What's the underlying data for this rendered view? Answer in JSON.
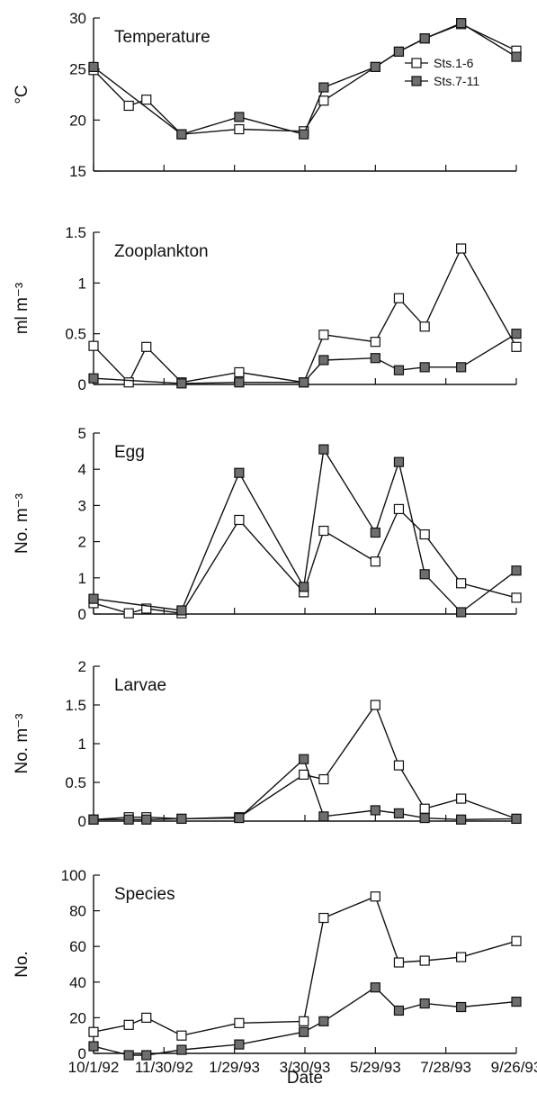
{
  "chart_data": [
    {
      "type": "line",
      "title": "Temperature",
      "ylabel": "°C",
      "xlabel": "",
      "ylim": [
        15,
        30
      ],
      "yticks": [
        15,
        20,
        25,
        30
      ],
      "legend": {
        "placement": "top-right",
        "entries": [
          "Sts.1-6",
          "Sts.7-11"
        ]
      },
      "series": [
        {
          "name": "Sts.1-6",
          "marker": "open-square",
          "points": [
            [
              "1992-10-01",
              24.9
            ],
            [
              "1992-10-31",
              21.4
            ],
            [
              "1992-11-15",
              22.0
            ],
            [
              "1992-12-15",
              18.6
            ],
            [
              "1993-02-02",
              19.1
            ],
            [
              "1993-03-29",
              18.9
            ],
            [
              "1993-04-15",
              21.9
            ],
            [
              "1993-05-29",
              25.2
            ],
            [
              "1993-06-18",
              26.7
            ],
            [
              "1993-07-10",
              28.0
            ],
            [
              "1993-08-10",
              29.4
            ],
            [
              "1993-09-26",
              26.8
            ]
          ]
        },
        {
          "name": "Sts.7-11",
          "marker": "filled-square",
          "points": [
            [
              "1992-10-01",
              25.2
            ],
            [
              "1992-12-15",
              18.6
            ],
            [
              "1993-02-02",
              20.3
            ],
            [
              "1993-03-29",
              18.6
            ],
            [
              "1993-04-15",
              23.2
            ],
            [
              "1993-05-29",
              25.2
            ],
            [
              "1993-06-18",
              26.7
            ],
            [
              "1993-07-10",
              28.0
            ],
            [
              "1993-08-10",
              29.5
            ],
            [
              "1993-09-26",
              26.2
            ]
          ]
        }
      ]
    },
    {
      "type": "line",
      "title": "Zooplankton",
      "ylabel": "ml m⁻³",
      "xlabel": "",
      "ylim": [
        0,
        1.5
      ],
      "yticks": [
        0,
        0.5,
        1,
        1.5
      ],
      "series": [
        {
          "name": "Sts.1-6",
          "marker": "open-square",
          "points": [
            [
              "1992-10-01",
              0.38
            ],
            [
              "1992-10-31",
              0.02
            ],
            [
              "1992-11-15",
              0.37
            ],
            [
              "1992-12-15",
              0.02
            ],
            [
              "1993-02-02",
              0.12
            ],
            [
              "1993-03-29",
              0.02
            ],
            [
              "1993-04-15",
              0.49
            ],
            [
              "1993-05-29",
              0.42
            ],
            [
              "1993-06-18",
              0.85
            ],
            [
              "1993-07-10",
              0.57
            ],
            [
              "1993-08-10",
              1.34
            ],
            [
              "1993-09-26",
              0.37
            ]
          ]
        },
        {
          "name": "Sts.7-11",
          "marker": "filled-square",
          "points": [
            [
              "1992-10-01",
              0.06
            ],
            [
              "1992-12-15",
              0.01
            ],
            [
              "1993-02-02",
              0.02
            ],
            [
              "1993-03-29",
              0.02
            ],
            [
              "1993-04-15",
              0.24
            ],
            [
              "1993-05-29",
              0.26
            ],
            [
              "1993-06-18",
              0.14
            ],
            [
              "1993-07-10",
              0.17
            ],
            [
              "1993-08-10",
              0.17
            ],
            [
              "1993-09-26",
              0.5
            ]
          ]
        }
      ]
    },
    {
      "type": "line",
      "title": "Egg",
      "ylabel": "No. m⁻³",
      "xlabel": "",
      "ylim": [
        0,
        5
      ],
      "yticks": [
        0,
        1,
        2,
        3,
        4,
        5
      ],
      "series": [
        {
          "name": "Sts.1-6",
          "marker": "open-square",
          "points": [
            [
              "1992-10-01",
              0.3
            ],
            [
              "1992-10-31",
              0.02
            ],
            [
              "1992-11-15",
              0.15
            ],
            [
              "1992-12-15",
              0.02
            ],
            [
              "1993-02-02",
              2.6
            ],
            [
              "1993-03-29",
              0.6
            ],
            [
              "1993-04-15",
              2.3
            ],
            [
              "1993-05-29",
              1.45
            ],
            [
              "1993-06-18",
              2.9
            ],
            [
              "1993-07-10",
              2.2
            ],
            [
              "1993-08-10",
              0.85
            ],
            [
              "1993-09-26",
              0.45
            ]
          ]
        },
        {
          "name": "Sts.7-11",
          "marker": "filled-square",
          "points": [
            [
              "1992-10-01",
              0.42
            ],
            [
              "1992-12-15",
              0.1
            ],
            [
              "1993-02-02",
              3.9
            ],
            [
              "1993-03-29",
              0.75
            ],
            [
              "1993-04-15",
              4.55
            ],
            [
              "1993-05-29",
              2.25
            ],
            [
              "1993-06-18",
              4.2
            ],
            [
              "1993-07-10",
              1.1
            ],
            [
              "1993-08-10",
              0.05
            ],
            [
              "1993-09-26",
              1.2
            ]
          ]
        }
      ]
    },
    {
      "type": "line",
      "title": "Larvae",
      "ylabel": "No. m⁻³",
      "xlabel": "",
      "ylim": [
        0,
        2
      ],
      "yticks": [
        0,
        0.5,
        1,
        1.5,
        2
      ],
      "series": [
        {
          "name": "Sts.1-6",
          "marker": "open-square",
          "points": [
            [
              "1992-10-01",
              0.02
            ],
            [
              "1992-10-31",
              0.05
            ],
            [
              "1992-11-15",
              0.05
            ],
            [
              "1992-12-15",
              0.03
            ],
            [
              "1993-02-02",
              0.05
            ],
            [
              "1993-03-29",
              0.6
            ],
            [
              "1993-04-15",
              0.54
            ],
            [
              "1993-05-29",
              1.5
            ],
            [
              "1993-06-18",
              0.72
            ],
            [
              "1993-07-10",
              0.16
            ],
            [
              "1993-08-10",
              0.29
            ],
            [
              "1993-09-26",
              0.03
            ]
          ]
        },
        {
          "name": "Sts.7-11",
          "marker": "filled-square",
          "points": [
            [
              "1992-10-01",
              0.02
            ],
            [
              "1992-10-31",
              0.02
            ],
            [
              "1992-11-15",
              0.02
            ],
            [
              "1992-12-15",
              0.03
            ],
            [
              "1993-02-02",
              0.04
            ],
            [
              "1993-03-29",
              0.8
            ],
            [
              "1993-04-15",
              0.06
            ],
            [
              "1993-05-29",
              0.14
            ],
            [
              "1993-06-18",
              0.1
            ],
            [
              "1993-07-10",
              0.04
            ],
            [
              "1993-08-10",
              0.02
            ],
            [
              "1993-09-26",
              0.03
            ]
          ]
        }
      ]
    },
    {
      "type": "line",
      "title": "Species",
      "ylabel": "No.",
      "xlabel": "Date",
      "ylim": [
        0,
        100
      ],
      "yticks": [
        0,
        20,
        40,
        60,
        80,
        100
      ],
      "xticks": [
        {
          "date": "1992-10-01",
          "label": "10/1/92"
        },
        {
          "date": "1992-11-30",
          "label": "11/30/92"
        },
        {
          "date": "1993-01-29",
          "label": "1/29/93"
        },
        {
          "date": "1993-03-30",
          "label": "3/30/93"
        },
        {
          "date": "1993-05-29",
          "label": "5/29/93"
        },
        {
          "date": "1993-07-28",
          "label": "7/28/93"
        },
        {
          "date": "1993-09-26",
          "label": "9/26/93"
        }
      ],
      "series": [
        {
          "name": "Sts.1-6",
          "marker": "open-square",
          "points": [
            [
              "1992-10-01",
              12
            ],
            [
              "1992-10-31",
              16
            ],
            [
              "1992-11-15",
              20
            ],
            [
              "1992-12-15",
              10
            ],
            [
              "1993-02-02",
              17
            ],
            [
              "1993-03-29",
              18
            ],
            [
              "1993-04-15",
              76
            ],
            [
              "1993-05-29",
              88
            ],
            [
              "1993-06-18",
              51
            ],
            [
              "1993-07-10",
              52
            ],
            [
              "1993-08-10",
              54
            ],
            [
              "1993-09-26",
              63
            ]
          ]
        },
        {
          "name": "Sts.7-11",
          "marker": "filled-square",
          "points": [
            [
              "1992-10-01",
              4
            ],
            [
              "1992-10-31",
              -1
            ],
            [
              "1992-11-15",
              -1
            ],
            [
              "1992-12-15",
              2
            ],
            [
              "1993-02-02",
              5
            ],
            [
              "1993-03-29",
              12
            ],
            [
              "1993-04-15",
              18
            ],
            [
              "1993-05-29",
              37
            ],
            [
              "1993-06-18",
              24
            ],
            [
              "1993-07-10",
              28
            ],
            [
              "1993-08-10",
              26
            ],
            [
              "1993-09-26",
              29
            ]
          ]
        }
      ]
    }
  ],
  "colors": {
    "axis": "#111111",
    "line": "#111111",
    "open_marker_fill": "#ffffff",
    "filled_marker_fill": "#6e6e6e"
  }
}
